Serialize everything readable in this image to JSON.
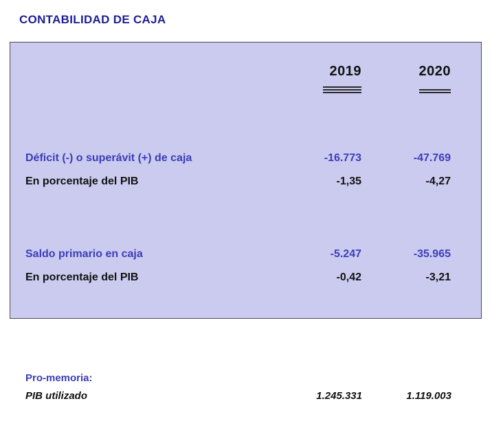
{
  "title": "CONTABILIDAD DE CAJA",
  "table": {
    "years": [
      "2019",
      "2020"
    ],
    "rows": [
      {
        "label": "Déficit (-) o superávit (+) de caja",
        "values": [
          "-16.773",
          "-47.769"
        ]
      },
      {
        "label": "En porcentaje del PIB",
        "values": [
          "-1,35",
          "-4,27"
        ]
      },
      {
        "label": "Saldo primario en caja",
        "values": [
          "-5.247",
          "-35.965"
        ]
      },
      {
        "label": "En porcentaje del PIB",
        "values": [
          "-0,42",
          "-3,21"
        ]
      }
    ]
  },
  "footer": {
    "pro_memoria_label": "Pro-memoria:",
    "pib_row": {
      "label": "PIB utilizado",
      "values": [
        "1.245.331",
        "1.119.003"
      ]
    }
  },
  "colors": {
    "title_blue": "#1e1e96",
    "accent_blue": "#3c3cba",
    "box_background": "#cbcbf0",
    "text_black": "#111111"
  }
}
